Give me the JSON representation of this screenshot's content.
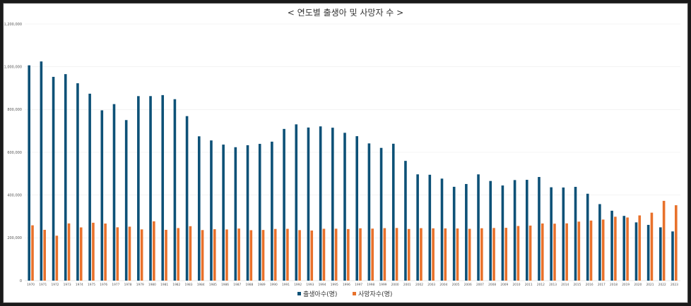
{
  "chart_data": {
    "type": "bar",
    "title": "< 연도별 출생아 및 사망자 수 >",
    "xlabel": "",
    "ylabel": "",
    "ylim": [
      0,
      1200000
    ],
    "yticks": [
      0,
      200000,
      400000,
      600000,
      800000,
      1000000,
      1200000
    ],
    "ytick_labels": [
      "0",
      "200,000",
      "400,000",
      "600,000",
      "800,000",
      "1,000,000",
      "1,200,000"
    ],
    "grid": true,
    "legend_position": "bottom",
    "categories": [
      "1970",
      "1971",
      "1972",
      "1973",
      "1974",
      "1975",
      "1976",
      "1977",
      "1978",
      "1979",
      "1980",
      "1981",
      "1982",
      "1983",
      "1984",
      "1985",
      "1986",
      "1987",
      "1988",
      "1989",
      "1990",
      "1991",
      "1992",
      "1993",
      "1994",
      "1995",
      "1996",
      "1997",
      "1998",
      "1999",
      "2000",
      "2001",
      "2002",
      "2003",
      "2004",
      "2005",
      "2006",
      "2007",
      "2008",
      "2009",
      "2010",
      "2011",
      "2012",
      "2013",
      "2014",
      "2015",
      "2016",
      "2017",
      "2018",
      "2019",
      "2020",
      "2021",
      "2022",
      "2023"
    ],
    "series": [
      {
        "name": "출생아수(명)",
        "color": "#0d5177",
        "values": [
          1006645,
          1024773,
          952780,
          965521,
          922823,
          874030,
          796331,
          825339,
          750728,
          862669,
          862835,
          867409,
          848312,
          769155,
          674793,
          655489,
          636019,
          623831,
          633092,
          639431,
          649738,
          709275,
          730678,
          715826,
          721185,
          715020,
          691226,
          675394,
          641594,
          620668,
          640089,
          559934,
          496911,
          495036,
          476958,
          438707,
          451759,
          496822,
          465892,
          444849,
          470171,
          471265,
          484550,
          436455,
          435435,
          438420,
          406243,
          357771,
          326822,
          302676,
          272337,
          260562,
          249186,
          230028
        ]
      },
      {
        "name": "사망자수(명)",
        "color": "#e8712b",
        "values": [
          258589,
          237528,
          210071,
          267460,
          248807,
          270657,
          266857,
          249254,
          252298,
          239548,
          277284,
          237481,
          245767,
          254563,
          236445,
          240418,
          239256,
          243504,
          235779,
          236818,
          241616,
          242270,
          236162,
          234257,
          242439,
          242838,
          241149,
          244693,
          243193,
          245364,
          246163,
          241521,
          245317,
          244506,
          244217,
          243883,
          242266,
          244874,
          246113,
          246942,
          255405,
          257396,
          267221,
          266257,
          267692,
          275895,
          280827,
          285534,
          298820,
          295110,
          304948,
          317680,
          372939,
          352511
        ]
      }
    ]
  }
}
